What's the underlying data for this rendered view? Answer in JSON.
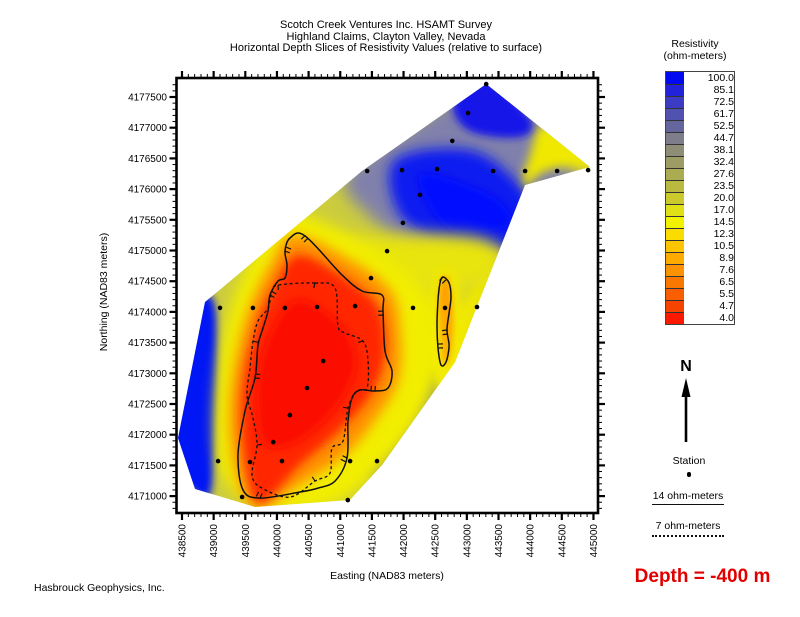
{
  "header": {
    "title_lines": [
      "Scotch Creek Ventures Inc. HSAMT Survey",
      "Highland Claims, Clayton Valley, Nevada",
      "Horizontal Depth Slices of Resistivity Values (relative to surface)"
    ]
  },
  "legend": {
    "title_line1": "Resistivity",
    "title_line2": "(ohm-meters)",
    "levels": [
      "100.0",
      "85.1",
      "72.5",
      "61.7",
      "52.5",
      "44.7",
      "38.1",
      "32.4",
      "27.6",
      "23.5",
      "20.0",
      "17.0",
      "14.5",
      "12.3",
      "10.5",
      "8.9",
      "7.6",
      "6.5",
      "5.5",
      "4.7",
      "4.0"
    ],
    "colors": [
      "#0009F0",
      "#2222DA",
      "#3B3BC4",
      "#5151B0",
      "#66669E",
      "#7D7D8C",
      "#8E8E76",
      "#9C9C64",
      "#ABAB52",
      "#BABA40",
      "#CACA2C",
      "#E0E016",
      "#F2F200",
      "#FBDC00",
      "#FDC500",
      "#FEAB00",
      "#FD9200",
      "#FB7800",
      "#F95E00",
      "#F64300",
      "#FD1800"
    ]
  },
  "side_panel": {
    "north_label": "N",
    "station_label": "Station",
    "solid_line_label": "14 ohm-meters",
    "dashed_line_label": "7 ohm-meters"
  },
  "footer": {
    "company": "Hasbrouck Geophysics, Inc.",
    "depth_label": "Depth = -400 m",
    "depth_color": "#E10000"
  },
  "chart_data": {
    "type": "heatmap",
    "subtype": "filled-contour-map",
    "xlabel": "Easting (NAD83 meters)",
    "ylabel": "Northing (NAD83 meters)",
    "x_ticks": [
      438500,
      439000,
      439500,
      440000,
      440500,
      441000,
      441500,
      442000,
      442500,
      443000,
      443500,
      444000,
      444500,
      445000
    ],
    "y_ticks": [
      4177500,
      4177000,
      4176500,
      4176000,
      4175500,
      4175000,
      4174500,
      4174000,
      4173500,
      4173000,
      4172500,
      4172000,
      4171500,
      4171000
    ],
    "minor_ticks_per_major": 5,
    "levels_ohm_m": [
      4.0,
      4.7,
      5.5,
      6.5,
      7.6,
      8.9,
      10.5,
      12.3,
      14.5,
      17.0,
      20.0,
      23.5,
      27.6,
      32.4,
      38.1,
      44.7,
      52.5,
      61.7,
      72.5,
      85.1,
      100.0
    ],
    "base_color": "#CCCC3E",
    "stations": [
      [
        443305,
        4177710
      ],
      [
        443020,
        4177240
      ],
      [
        442770,
        4176785
      ],
      [
        441425,
        4176295
      ],
      [
        441975,
        4176310
      ],
      [
        442530,
        4176325
      ],
      [
        443415,
        4176295
      ],
      [
        443920,
        4176295
      ],
      [
        444425,
        4176295
      ],
      [
        444915,
        4176310
      ],
      [
        442260,
        4175905
      ],
      [
        441990,
        4175450
      ],
      [
        441740,
        4174990
      ],
      [
        441485,
        4174550
      ],
      [
        439100,
        4174065
      ],
      [
        439620,
        4174065
      ],
      [
        440125,
        4174065
      ],
      [
        440635,
        4174080
      ],
      [
        441235,
        4174095
      ],
      [
        442150,
        4174065
      ],
      [
        442655,
        4174065
      ],
      [
        443160,
        4174080
      ],
      [
        440730,
        4173200
      ],
      [
        440475,
        4172760
      ],
      [
        440205,
        4172320
      ],
      [
        439940,
        4171880
      ],
      [
        439070,
        4171570
      ],
      [
        439575,
        4171555
      ],
      [
        440080,
        4171570
      ],
      [
        441155,
        4171570
      ],
      [
        441580,
        4171570
      ],
      [
        439450,
        4170985
      ],
      [
        441120,
        4170935
      ]
    ],
    "boundary": [
      [
        443305,
        4177712
      ],
      [
        444946,
        4176360
      ],
      [
        443919,
        4176067
      ],
      [
        442813,
        4173183
      ],
      [
        441660,
        4171506
      ],
      [
        441154,
        4170936
      ],
      [
        439653,
        4170822
      ],
      [
        438705,
        4171115
      ],
      [
        438437,
        4171946
      ],
      [
        438863,
        4174161
      ],
      [
        441344,
        4176295
      ]
    ],
    "contour_14ohm": [
      [
        440440,
        4175240
      ],
      [
        441030,
        4174600
      ],
      [
        441344,
        4174340
      ],
      [
        441660,
        4174275
      ],
      [
        441676,
        4174014
      ],
      [
        441707,
        4173363
      ],
      [
        441818,
        4173037
      ],
      [
        441755,
        4172760
      ],
      [
        441549,
        4172711
      ],
      [
        441312,
        4172728
      ],
      [
        441186,
        4172597
      ],
      [
        441123,
        4172223
      ],
      [
        441107,
        4171620
      ],
      [
        440917,
        4171245
      ],
      [
        440649,
        4171131
      ],
      [
        440364,
        4171066
      ],
      [
        439732,
        4170968
      ],
      [
        439464,
        4171099
      ],
      [
        439385,
        4171669
      ],
      [
        439495,
        4172385
      ],
      [
        439653,
        4172923
      ],
      [
        439701,
        4173460
      ],
      [
        439780,
        4173737
      ],
      [
        439859,
        4174014
      ],
      [
        439890,
        4174275
      ],
      [
        440017,
        4174503
      ],
      [
        440127,
        4174552
      ],
      [
        440159,
        4174763
      ],
      [
        440127,
        4174991
      ],
      [
        440206,
        4175203
      ]
    ],
    "contour_7ohm": [
      [
        440601,
        4174470
      ],
      [
        440917,
        4174389
      ],
      [
        440964,
        4173770
      ],
      [
        441075,
        4173656
      ],
      [
        441360,
        4173525
      ],
      [
        441439,
        4173200
      ],
      [
        441423,
        4172760
      ],
      [
        441265,
        4172711
      ],
      [
        441123,
        4172434
      ],
      [
        441044,
        4171896
      ],
      [
        440870,
        4171782
      ],
      [
        440838,
        4171375
      ],
      [
        440601,
        4171245
      ],
      [
        440206,
        4170984
      ],
      [
        439764,
        4171131
      ],
      [
        439606,
        4171343
      ],
      [
        439685,
        4171831
      ],
      [
        439622,
        4172271
      ],
      [
        439527,
        4172646
      ],
      [
        439574,
        4173086
      ],
      [
        439622,
        4173525
      ],
      [
        439701,
        4173851
      ],
      [
        439859,
        4174063
      ],
      [
        439922,
        4174340
      ],
      [
        440017,
        4174437
      ]
    ],
    "contour_14ohm_inner": [
      [
        442624,
        4174568
      ],
      [
        442719,
        4174470
      ],
      [
        442750,
        4174242
      ],
      [
        442719,
        4173982
      ],
      [
        442687,
        4173705
      ],
      [
        442719,
        4173444
      ],
      [
        442671,
        4173183
      ],
      [
        442592,
        4173135
      ],
      [
        442545,
        4173411
      ],
      [
        442529,
        4173786
      ],
      [
        442545,
        4174193
      ],
      [
        442576,
        4174470
      ]
    ],
    "fill_regions": [
      {
        "name": "left-blue-strip",
        "color": "#0018F5",
        "blur": 4,
        "pts": [
          [
            438674,
            4174226
          ],
          [
            439037,
            4173982
          ],
          [
            438990,
            4171294
          ],
          [
            438737,
            4171033
          ],
          [
            438310,
            4171783
          ],
          [
            438405,
            4173705
          ]
        ]
      },
      {
        "name": "top-purple-band",
        "color": "#8080AC",
        "blur": 8,
        "pts": [
          [
            441075,
            4176181
          ],
          [
            442023,
            4176962
          ],
          [
            443366,
            4177647
          ],
          [
            444472,
            4176800
          ],
          [
            444709,
            4175904
          ],
          [
            444235,
            4174845
          ],
          [
            443208,
            4174714
          ],
          [
            442260,
            4174975
          ],
          [
            441502,
            4175529
          ]
        ]
      },
      {
        "name": "right-edge-yellow-band",
        "color": "#F0E800",
        "blur": 5,
        "pts": [
          [
            444235,
            4177044
          ],
          [
            445025,
            4176393
          ],
          [
            443951,
            4176034
          ],
          [
            442861,
            4173086
          ],
          [
            442545,
            4173379
          ],
          [
            443603,
            4175366
          ],
          [
            443967,
            4176474
          ]
        ]
      },
      {
        "name": "top-blue-main",
        "color": "#0D1EF0",
        "blur": 6,
        "pts": [
          [
            441865,
            4176474
          ],
          [
            443050,
            4176637
          ],
          [
            443840,
            4176067
          ],
          [
            444235,
            4175334
          ],
          [
            443840,
            4175008
          ],
          [
            442734,
            4175089
          ],
          [
            441944,
            4175578
          ]
        ]
      },
      {
        "name": "top-blue-apex",
        "color": "#1212E8",
        "blur": 4,
        "pts": [
          [
            443240,
            4177842
          ],
          [
            443998,
            4177158
          ],
          [
            443840,
            4176848
          ],
          [
            443050,
            4176946
          ],
          [
            442782,
            4177402
          ]
        ]
      },
      {
        "name": "top-blue-core",
        "color": "#0008FF",
        "blur": 4,
        "pts": [
          [
            442260,
            4176230
          ],
          [
            443366,
            4175904
          ],
          [
            443682,
            4175415
          ],
          [
            442734,
            4175334
          ]
        ]
      },
      {
        "name": "mid-yellow-band",
        "color": "#E8E410",
        "blur": 8,
        "pts": [
          [
            440048,
            4175089
          ],
          [
            442892,
            4175252
          ],
          [
            443603,
            4174845
          ],
          [
            442892,
            4174356
          ],
          [
            440838,
            4174682
          ],
          [
            440285,
            4174763
          ]
        ]
      },
      {
        "name": "lower-right-gray",
        "color": "#8C8C6A",
        "blur": 6,
        "pts": [
          [
            441154,
            4172076
          ],
          [
            441865,
            4172809
          ],
          [
            442576,
            4173086
          ],
          [
            442260,
            4171587
          ],
          [
            441549,
            4171294
          ]
        ]
      },
      {
        "name": "streak-yellow-halo",
        "color": "#F2EA00",
        "blur": 5,
        "ellipse": true,
        "cx": 442655,
        "cy": 4173705,
        "rx_m": 316,
        "ry_m": 1010
      },
      {
        "name": "streak-orange",
        "color": "#FFA000",
        "blur": 3,
        "ellipse": true,
        "cx": 442655,
        "cy": 4173868,
        "rx_m": 126,
        "ry_m": 733
      },
      {
        "name": "red-zone-yellow-halo",
        "color": "#F2EE00",
        "blur": 7,
        "pts": [
          [
            440127,
            4175578
          ],
          [
            440838,
            4175415
          ],
          [
            441865,
            4174763
          ],
          [
            442418,
            4174275
          ],
          [
            442576,
            4173216
          ],
          [
            442260,
            4172239
          ],
          [
            441628,
            4171424
          ],
          [
            440838,
            4170854
          ],
          [
            439859,
            4170773
          ],
          [
            439179,
            4171261
          ],
          [
            439021,
            4172239
          ],
          [
            439179,
            4173705
          ],
          [
            439574,
            4174845
          ]
        ]
      },
      {
        "name": "red-zone-orange-ring",
        "color": "#FF9000",
        "blur": 6,
        "pts": [
          [
            440285,
            4175252
          ],
          [
            441154,
            4174845
          ],
          [
            441786,
            4174356
          ],
          [
            441944,
            4173705
          ],
          [
            441913,
            4172890
          ],
          [
            441549,
            4172239
          ],
          [
            441075,
            4171669
          ],
          [
            440364,
            4171180
          ],
          [
            439669,
            4170805
          ],
          [
            439337,
            4171424
          ],
          [
            439258,
            4172564
          ],
          [
            439495,
            4173868
          ],
          [
            439890,
            4174763
          ]
        ]
      },
      {
        "name": "red-zone",
        "color": "#FF2800",
        "blur": 5,
        "pts": [
          [
            440364,
            4174926
          ],
          [
            441233,
            4174437
          ],
          [
            441628,
            4174030
          ],
          [
            441707,
            4173297
          ],
          [
            441470,
            4172646
          ],
          [
            440996,
            4172076
          ],
          [
            440364,
            4171506
          ],
          [
            439732,
            4170887
          ],
          [
            439495,
            4171587
          ],
          [
            439448,
            4172646
          ],
          [
            439653,
            4173705
          ],
          [
            439969,
            4174437
          ]
        ]
      },
      {
        "name": "red-core",
        "color": "#FB0F00",
        "blur": 4,
        "pts": [
          [
            440364,
            4174193
          ],
          [
            441075,
            4173705
          ],
          [
            441233,
            4173053
          ],
          [
            440838,
            4172320
          ],
          [
            440206,
            4171831
          ],
          [
            439764,
            4171913
          ],
          [
            439701,
            4172890
          ],
          [
            439922,
            4173705
          ]
        ]
      }
    ]
  }
}
